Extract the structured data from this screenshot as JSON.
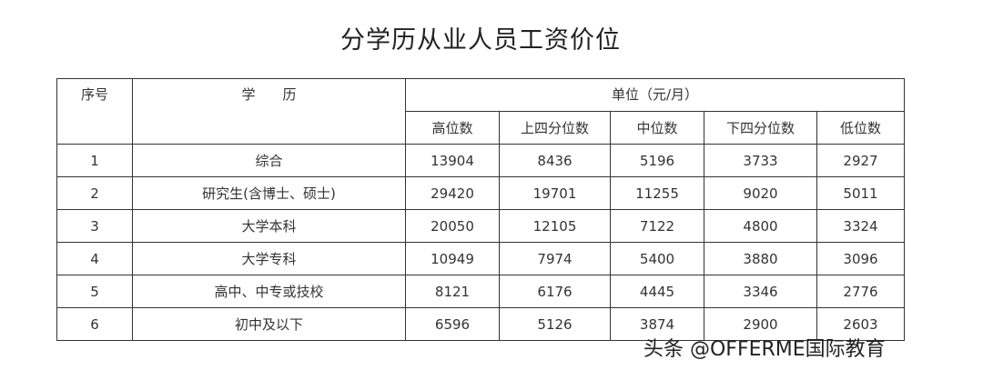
{
  "title": "分学历从业人员工资价位",
  "table": {
    "header_index": "序号",
    "header_education": "学　　历",
    "header_unit": "单位（元/月）",
    "columns": [
      "高位数",
      "上四分位数",
      "中位数",
      "下四分位数",
      "低位数"
    ],
    "rows": [
      {
        "index": "1",
        "education": "综合",
        "values": [
          "13904",
          "8436",
          "5196",
          "3733",
          "2927"
        ]
      },
      {
        "index": "2",
        "education": "研究生(含博士、硕士)",
        "values": [
          "29420",
          "19701",
          "11255",
          "9020",
          "5011"
        ]
      },
      {
        "index": "3",
        "education": "大学本科",
        "values": [
          "20050",
          "12105",
          "7122",
          "4800",
          "3324"
        ]
      },
      {
        "index": "4",
        "education": "大学专科",
        "values": [
          "10949",
          "7974",
          "5400",
          "3880",
          "3096"
        ]
      },
      {
        "index": "5",
        "education": "高中、中专或技校",
        "values": [
          "8121",
          "6176",
          "4445",
          "3346",
          "2776"
        ]
      },
      {
        "index": "6",
        "education": "初中及以下",
        "values": [
          "6596",
          "5126",
          "3874",
          "2900",
          "2603"
        ]
      }
    ]
  },
  "watermark": "头条 @OFFERME国际教育"
}
